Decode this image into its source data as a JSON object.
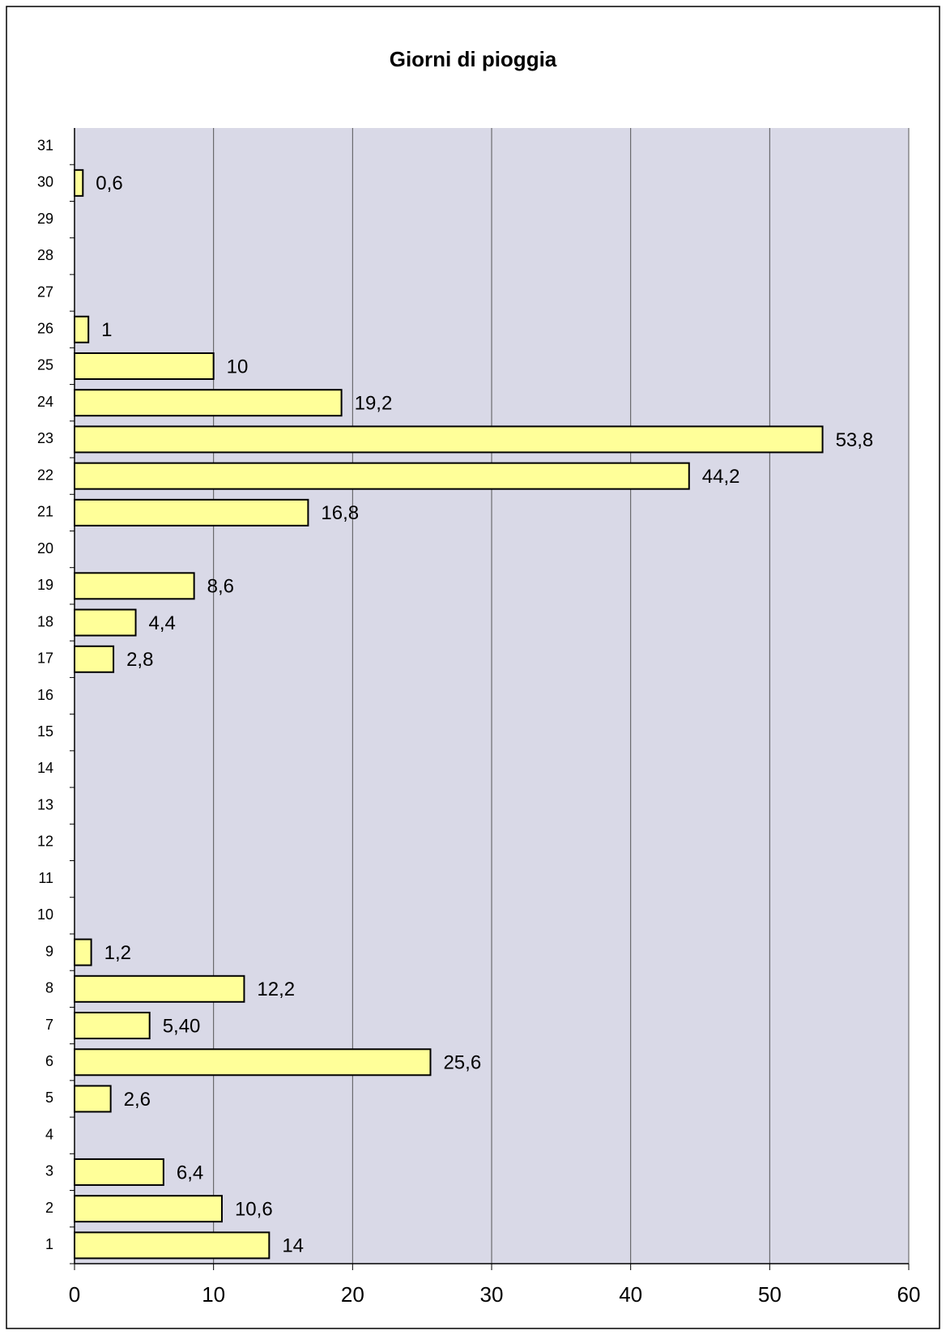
{
  "chart_data": {
    "type": "bar",
    "orientation": "horizontal",
    "title": "Giorni di pioggia",
    "categories": [
      "1",
      "2",
      "3",
      "4",
      "5",
      "6",
      "7",
      "8",
      "9",
      "10",
      "11",
      "12",
      "13",
      "14",
      "15",
      "16",
      "17",
      "18",
      "19",
      "20",
      "21",
      "22",
      "23",
      "24",
      "25",
      "26",
      "27",
      "28",
      "29",
      "30",
      "31"
    ],
    "values": [
      14,
      10.6,
      6.4,
      null,
      2.6,
      25.6,
      5.4,
      12.2,
      1.2,
      null,
      null,
      null,
      null,
      null,
      null,
      null,
      2.8,
      4.4,
      8.6,
      null,
      16.8,
      44.2,
      53.8,
      19.2,
      10,
      1,
      null,
      null,
      null,
      0.6,
      null
    ],
    "value_labels": [
      "14",
      "10,6",
      "6,4",
      null,
      "2,6",
      "25,6",
      "5,40",
      "12,2",
      "1,2",
      null,
      null,
      null,
      null,
      null,
      null,
      null,
      "2,8",
      "4,4",
      "8,6",
      null,
      "16,8",
      "44,2",
      "53,8",
      "19,2",
      "10",
      "1",
      null,
      null,
      null,
      "0,6",
      null
    ],
    "color": "#ffff99",
    "xlim": [
      0,
      60
    ],
    "xticks": [
      0,
      10,
      20,
      30,
      40,
      50,
      60
    ],
    "grid": true
  }
}
